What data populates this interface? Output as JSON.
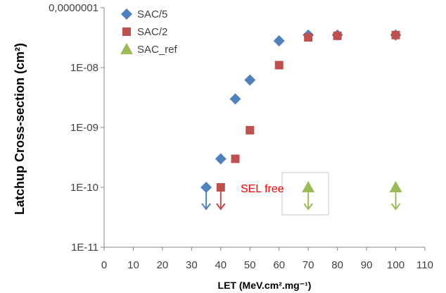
{
  "chart_data": {
    "type": "scatter",
    "xlabel": "LET (MeV.cm².mg⁻¹)",
    "ylabel": "Latchup Cross-section (cm²)",
    "xlim": [
      0,
      110
    ],
    "ylim": [
      1e-11,
      1e-07
    ],
    "y_scale": "log",
    "grid": false,
    "legend_placement": "top-left",
    "x_ticks": [
      0,
      10,
      20,
      30,
      40,
      50,
      60,
      70,
      80,
      90,
      100,
      110
    ],
    "x_tick_labels": [
      "0",
      "10",
      "20",
      "30",
      "40",
      "50",
      "60",
      "70",
      "80",
      "90",
      "100",
      "110"
    ],
    "y_ticks": [
      1e-11,
      1e-10,
      1e-09,
      1e-08,
      1e-07
    ],
    "y_tick_labels": [
      "1E-11",
      "1E-10",
      "1E-09",
      "1E-08",
      "0,0000001"
    ],
    "series": [
      {
        "name": "SAC/5",
        "marker": "diamond",
        "color": "#4F81BD",
        "x": [
          35,
          40,
          45,
          50,
          60,
          70,
          80,
          100
        ],
        "y": [
          1e-10,
          3e-10,
          3e-09,
          6.2e-09,
          2.8e-08,
          3.5e-08,
          3.5e-08,
          3.5e-08
        ],
        "limit_arrow": [
          "down",
          null,
          null,
          null,
          null,
          null,
          null,
          null
        ]
      },
      {
        "name": "SAC/2",
        "marker": "square",
        "color": "#C0504D",
        "x": [
          40,
          45,
          50,
          60,
          70,
          80,
          100
        ],
        "y": [
          1e-10,
          3e-10,
          9e-10,
          1.1e-08,
          3.2e-08,
          3.4e-08,
          3.5e-08
        ],
        "limit_arrow": [
          "down",
          null,
          null,
          null,
          null,
          null,
          null
        ]
      },
      {
        "name": "SAC_ref",
        "marker": "triangle",
        "color": "#9BBB59",
        "x": [
          70,
          100
        ],
        "y": [
          1e-10,
          1e-10
        ],
        "limit_arrow": [
          "down",
          "down"
        ]
      }
    ],
    "annotations": [
      {
        "text": "SEL free",
        "x": 60,
        "y": 1e-10,
        "color": "#FF0000"
      }
    ]
  }
}
